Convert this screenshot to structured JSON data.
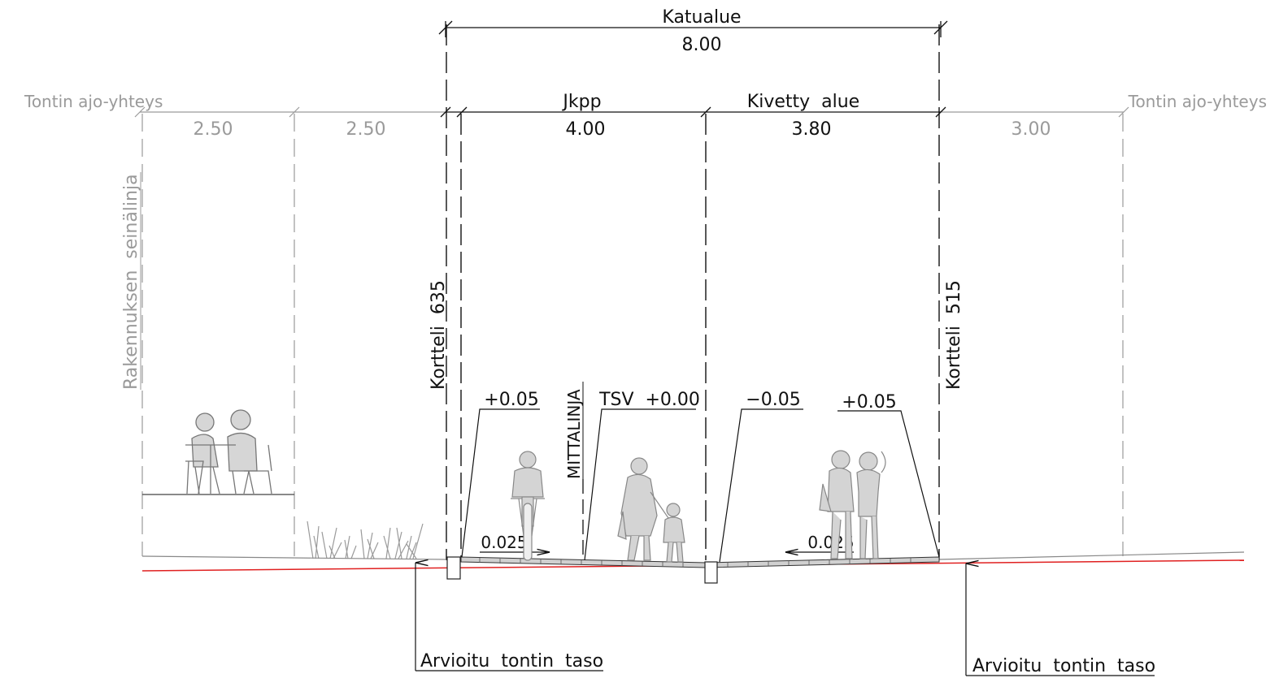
{
  "colors": {
    "line": "#111111",
    "faint": "#9a9a9a",
    "ground_line": "#e02020",
    "paving": "#555555",
    "figures": "#c8c8c8"
  },
  "labels": {
    "katualue": "Katualue",
    "katualue_width": "8.00",
    "tontin_left": "Tontin ajo-yhteys",
    "tontin_right": "Tontin ajo-yhteys",
    "zone_left_1": "2.50",
    "zone_left_2": "2.50",
    "jkpp": "Jkpp",
    "jkpp_width": "4.00",
    "kivetty": "Kivetty  alue",
    "kivetty_width": "3.80",
    "zone_right": "3.00",
    "rakennuksen": "Rakennuksen  seinälinja",
    "kortteli_left": "Kortteli  635",
    "kortteli_right": "Kortteli  515",
    "mittalinja": "MITTALINJA",
    "level_1": "+0.05",
    "level_2": "TSV  +0.00",
    "level_3": "−0.05",
    "level_4": "+0.05",
    "slope_left": "0.025",
    "slope_right": "0.025",
    "arvioitu_left": "Arvioitu  tontin  taso",
    "arvioitu_right": "Arvioitu  tontin  taso"
  },
  "icons": [
    "cafe-table-people-icon",
    "grass-icon",
    "cyclist-icon",
    "adult-with-child-icon",
    "two-women-icon"
  ]
}
